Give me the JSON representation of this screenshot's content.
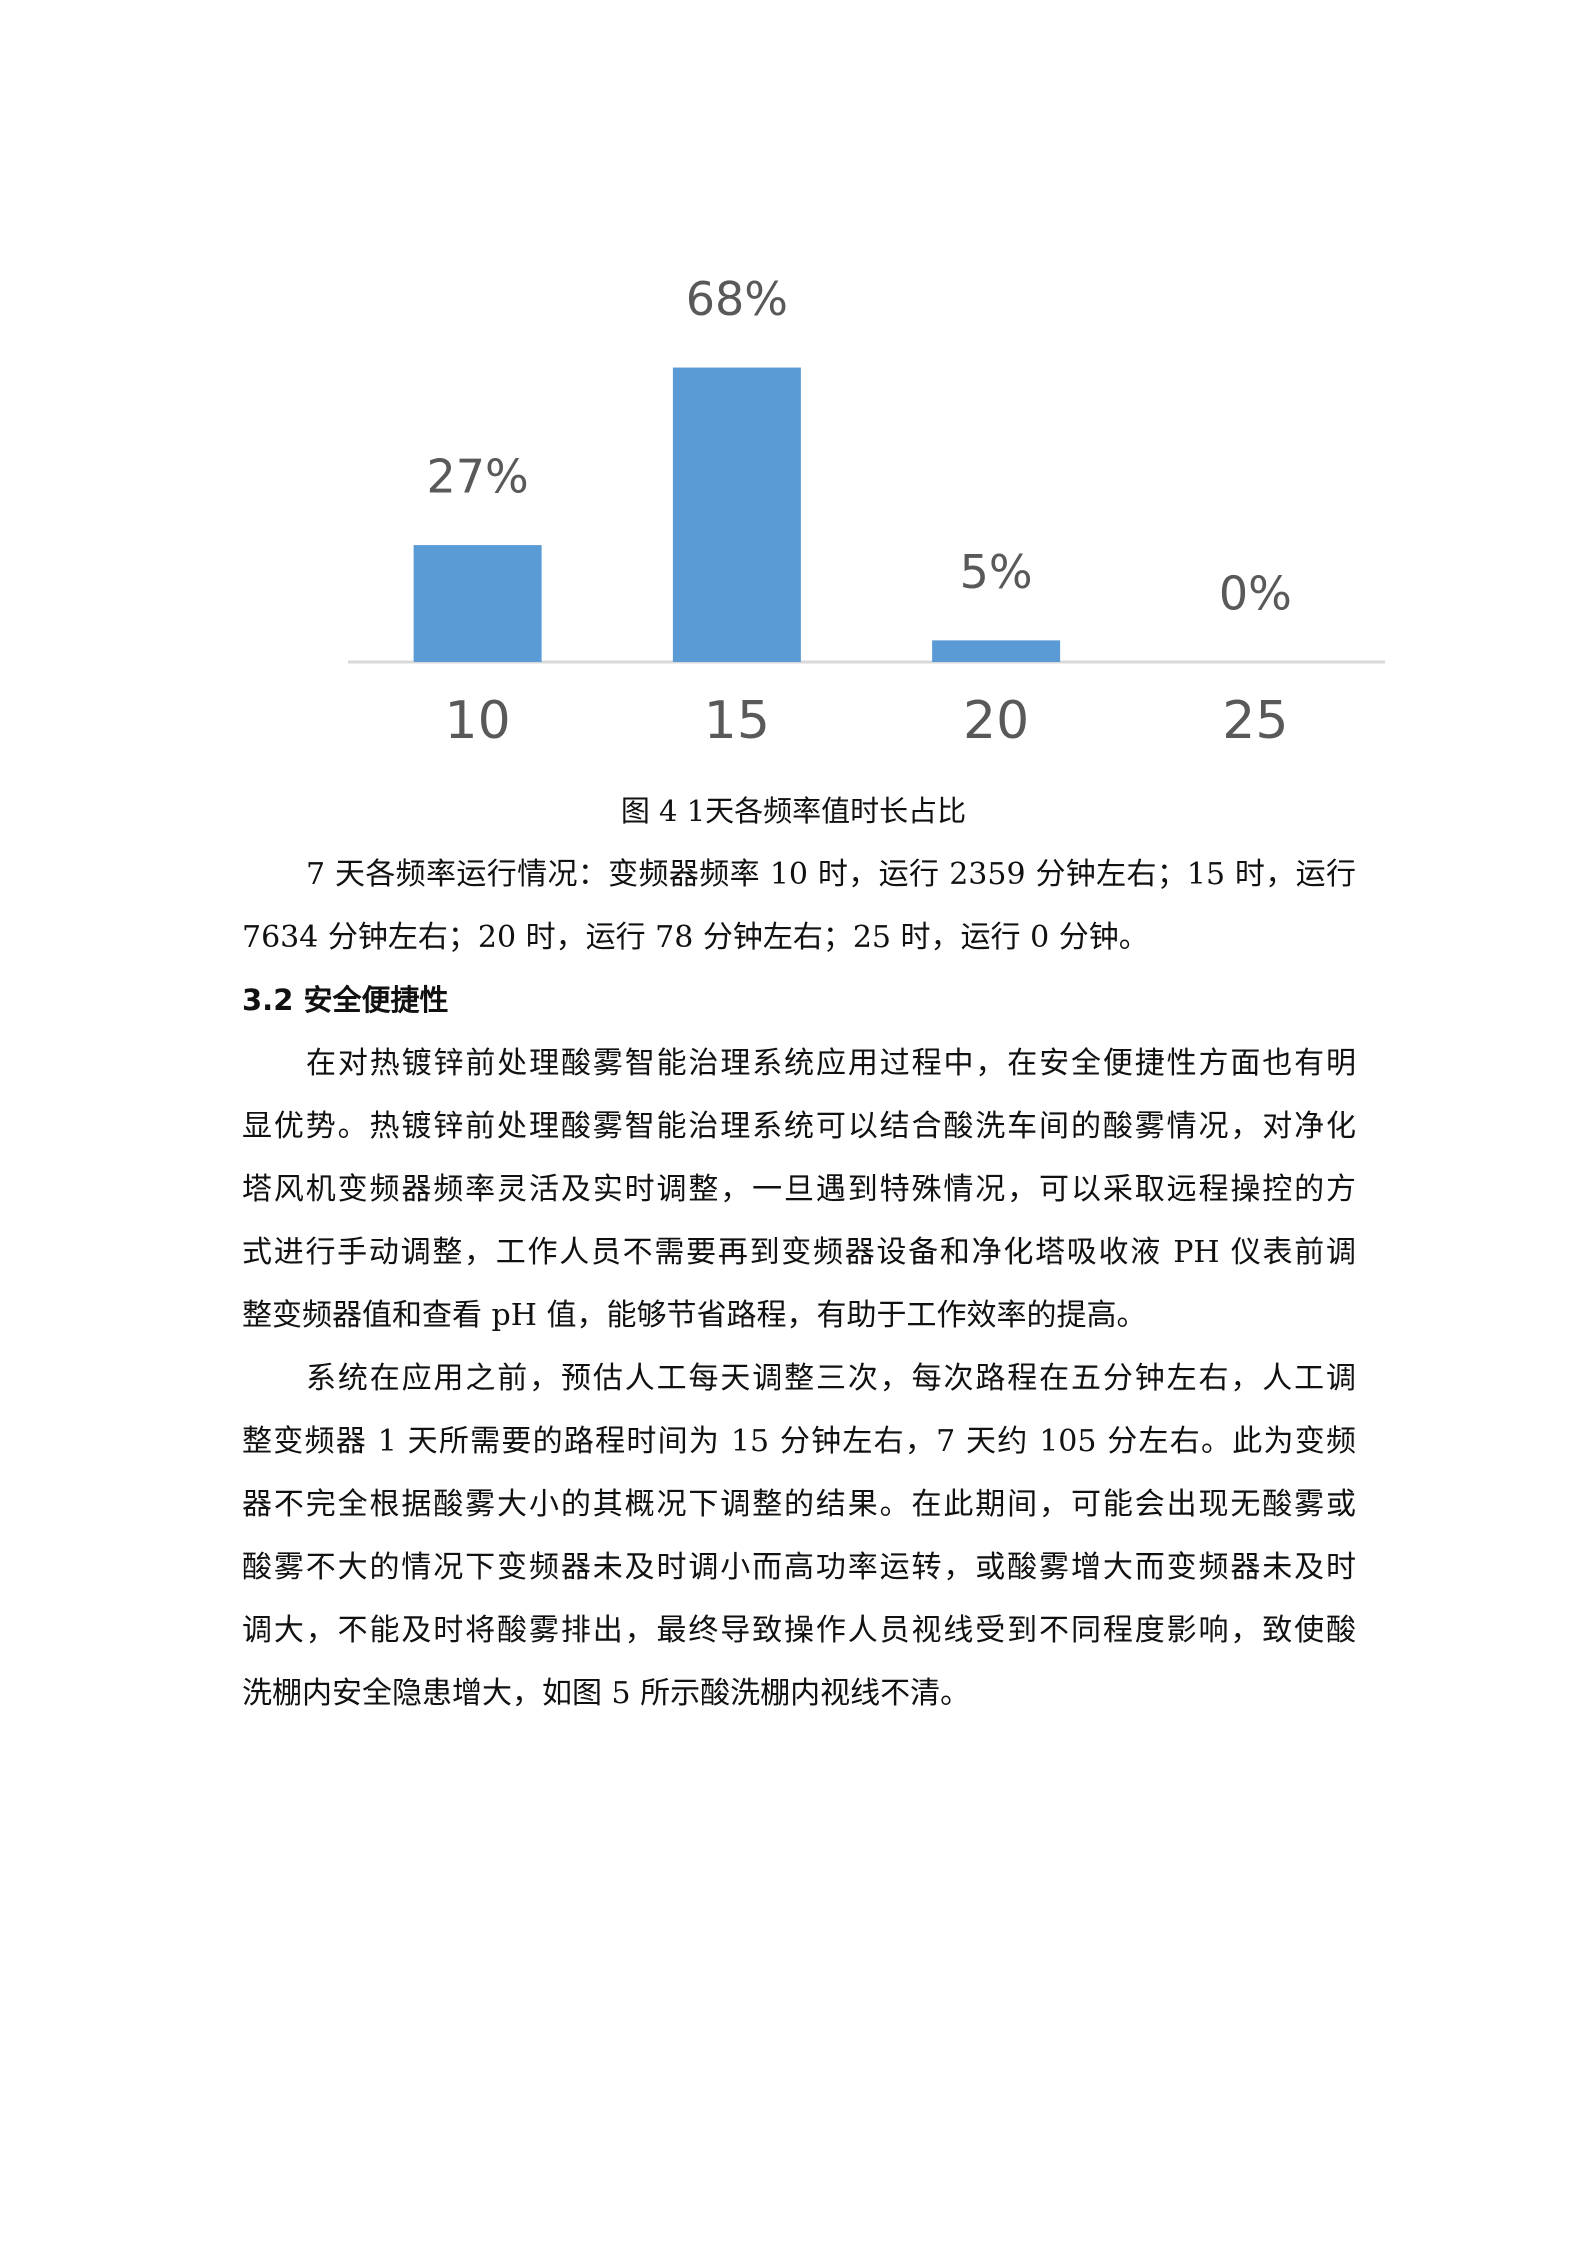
{
  "chart_data": {
    "type": "bar",
    "categories": [
      "10",
      "15",
      "20",
      "25"
    ],
    "values": [
      27,
      68,
      5,
      0
    ],
    "value_labels": [
      "27%",
      "68%",
      "5%",
      "0%"
    ],
    "color": "#5b9bd5"
  },
  "caption": "图 4 1天各频率值时长占比",
  "paragraph_1": [
    "7 天各频率运行情况：变频器频率 10 时，运行 2359 分钟左右；15 时，运行",
    "7634 分钟左右；20 时，运行 78 分钟左右；25 时，运行 0 分钟。"
  ],
  "section_heading": "3.2 安全便捷性",
  "paragraph_2": [
    "在对热镀锌前处理酸雾智能治理系统应用过程中，在安全便捷性方面也有明",
    "显优势。热镀锌前处理酸雾智能治理系统可以结合酸洗车间的酸雾情况，对净化",
    "塔风机变频器频率灵活及实时调整，一旦遇到特殊情况，可以采取远程操控的方",
    "式进行手动调整，工作人员不需要再到变频器设备和净化塔吸收液 PH 仪表前调",
    "整变频器值和查看 pH 值，能够节省路程，有助于工作效率的提高。"
  ],
  "paragraph_3": [
    "系统在应用之前，预估人工每天调整三次，每次路程在五分钟左右，人工调",
    "整变频器 1 天所需要的路程时间为 15 分钟左右，7 天约 105 分左右。此为变频",
    "器不完全根据酸雾大小的其概况下调整的结果。在此期间，可能会出现无酸雾或",
    "酸雾不大的情况下变频器未及时调小而高功率运转，或酸雾增大而变频器未及时",
    "调大，不能及时将酸雾排出，最终导致操作人员视线受到不同程度影响，致使酸",
    "洗棚内安全隐患增大，如图 5 所示酸洗棚内视线不清。"
  ]
}
